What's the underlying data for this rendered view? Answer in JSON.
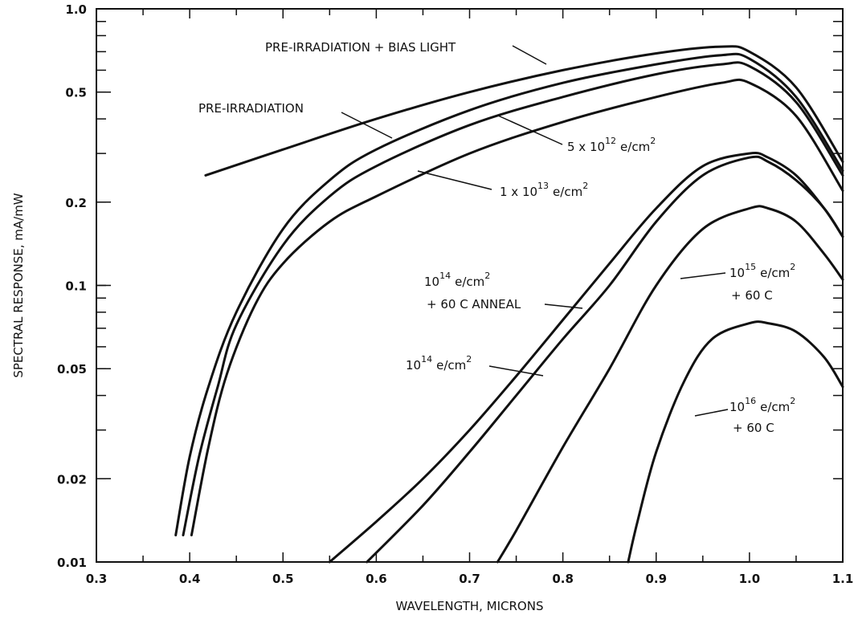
{
  "chart_data": {
    "type": "line",
    "title": "",
    "xlabel": "WAVELENGTH, MICRONS",
    "ylabel": "SPECTRAL RESPONSE, mA/mW",
    "x_scale": "linear",
    "y_scale": "log",
    "xlim": [
      0.3,
      1.1
    ],
    "ylim": [
      0.01,
      1.0
    ],
    "x_ticks": [
      "0.3",
      "0.4",
      "0.5",
      "0.6",
      "0.7",
      "0.8",
      "0.9",
      "1.0",
      "1.1"
    ],
    "y_ticks": [
      {
        "value": 0.01,
        "label": "0.01"
      },
      {
        "value": 0.02,
        "label": "0.02"
      },
      {
        "value": 0.05,
        "label": "0.05"
      },
      {
        "value": 0.1,
        "label": "0.1"
      },
      {
        "value": 0.2,
        "label": "0.2"
      },
      {
        "value": 0.5,
        "label": "0.5"
      },
      {
        "value": 1.0,
        "label": "1.0"
      }
    ],
    "grid": false,
    "series": [
      {
        "name": "PRE-IRRADIATION + BIAS LIGHT",
        "x": [
          0.417,
          0.5,
          0.6,
          0.7,
          0.8,
          0.9,
          0.97,
          1.0,
          1.05,
          1.1
        ],
        "y": [
          0.25,
          0.31,
          0.4,
          0.5,
          0.6,
          0.69,
          0.73,
          0.7,
          0.52,
          0.28
        ]
      },
      {
        "name": "PRE-IRRADIATION",
        "x": [
          0.385,
          0.4,
          0.42,
          0.45,
          0.5,
          0.55,
          0.6,
          0.7,
          0.8,
          0.9,
          0.97,
          1.0,
          1.05,
          1.1
        ],
        "y": [
          0.0125,
          0.024,
          0.043,
          0.08,
          0.16,
          0.24,
          0.31,
          0.43,
          0.54,
          0.63,
          0.68,
          0.66,
          0.48,
          0.26
        ]
      },
      {
        "name": "5 x 10^12 e/cm^2",
        "x": [
          0.393,
          0.41,
          0.43,
          0.45,
          0.5,
          0.55,
          0.6,
          0.7,
          0.8,
          0.9,
          0.97,
          1.0,
          1.05,
          1.1
        ],
        "y": [
          0.0125,
          0.024,
          0.043,
          0.072,
          0.14,
          0.21,
          0.27,
          0.38,
          0.48,
          0.58,
          0.63,
          0.62,
          0.46,
          0.25
        ]
      },
      {
        "name": "1 x 10^13 e/cm^2",
        "x": [
          0.402,
          0.42,
          0.44,
          0.47,
          0.5,
          0.55,
          0.6,
          0.7,
          0.8,
          0.9,
          0.97,
          1.0,
          1.05,
          1.1
        ],
        "y": [
          0.0125,
          0.026,
          0.048,
          0.085,
          0.12,
          0.17,
          0.21,
          0.3,
          0.39,
          0.48,
          0.54,
          0.54,
          0.41,
          0.22
        ]
      },
      {
        "name": "10^14 e/cm^2 + 60 C ANNEAL",
        "x": [
          0.55,
          0.6,
          0.65,
          0.7,
          0.75,
          0.8,
          0.85,
          0.9,
          0.95,
          1.0,
          1.02,
          1.05,
          1.08,
          1.1
        ],
        "y": [
          0.01,
          0.014,
          0.02,
          0.03,
          0.047,
          0.075,
          0.12,
          0.19,
          0.27,
          0.3,
          0.29,
          0.25,
          0.19,
          0.15
        ]
      },
      {
        "name": "10^14 e/cm^2",
        "x": [
          0.59,
          0.65,
          0.7,
          0.75,
          0.8,
          0.85,
          0.9,
          0.95,
          1.0,
          1.02,
          1.05,
          1.08,
          1.1
        ],
        "y": [
          0.01,
          0.016,
          0.025,
          0.04,
          0.064,
          0.1,
          0.17,
          0.25,
          0.29,
          0.28,
          0.24,
          0.19,
          0.15
        ]
      },
      {
        "name": "10^15 e/cm^2 + 60 C",
        "x": [
          0.73,
          0.75,
          0.8,
          0.85,
          0.9,
          0.95,
          1.0,
          1.02,
          1.05,
          1.08,
          1.1
        ],
        "y": [
          0.01,
          0.013,
          0.026,
          0.05,
          0.1,
          0.16,
          0.19,
          0.19,
          0.17,
          0.13,
          0.105
        ]
      },
      {
        "name": "10^16 e/cm^2 + 60 C",
        "x": [
          0.87,
          0.88,
          0.9,
          0.93,
          0.96,
          1.0,
          1.02,
          1.05,
          1.08,
          1.1
        ],
        "y": [
          0.01,
          0.014,
          0.025,
          0.045,
          0.064,
          0.073,
          0.073,
          0.068,
          0.055,
          0.043
        ]
      }
    ],
    "annotations": [
      {
        "text": "PRE-IRRADIATION + BIAS LIGHT",
        "series": 0
      },
      {
        "text": "PRE-IRRADIATION",
        "series": 1
      },
      {
        "text": "5 x 10^12 e/cm^2",
        "series": 2
      },
      {
        "text": "1 x 10^13 e/cm^2",
        "series": 3
      },
      {
        "text": "10^14 e/cm^2 + 60 C ANNEAL",
        "series": 4
      },
      {
        "text": "10^14 e/cm^2",
        "series": 5
      },
      {
        "text": "10^15 e/cm^2 + 60 C",
        "series": 6
      },
      {
        "text": "10^16 e/cm^2 + 60 C",
        "series": 7
      }
    ]
  },
  "labels": {
    "bias_light": "PRE-IRRADIATION + BIAS LIGHT",
    "pre_irradiation": "PRE-IRRADIATION",
    "l5e12_coef": "5 x 10",
    "l5e12_exp": "12",
    "l1e13_coef": "1 x 10",
    "l1e13_exp": "13",
    "unit": "e/cm",
    "unit_exp": "2",
    "l1e14a_base": "10",
    "l1e14a_exp": "14",
    "l1e14a_line2": "+ 60 C ANNEAL",
    "l1e14_base": "10",
    "l1e14_exp": "14",
    "l1e15_base": "10",
    "l1e15_exp": "15",
    "l1e15_line2": "+ 60 C",
    "l1e16_base": "10",
    "l1e16_exp": "16",
    "l1e16_line2": "+ 60 C"
  }
}
